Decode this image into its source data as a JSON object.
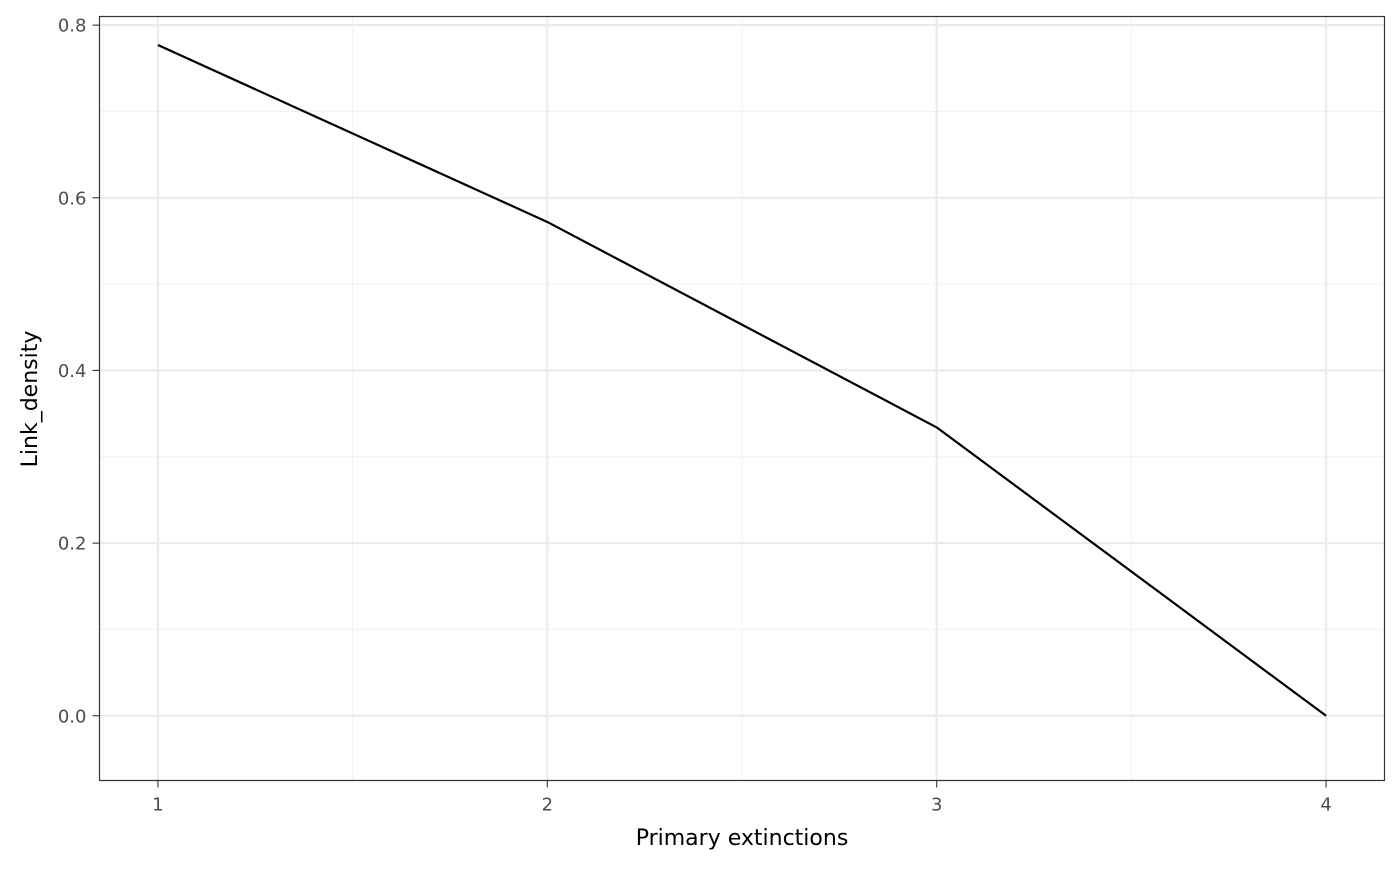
{
  "chart_data": {
    "type": "line",
    "title": "",
    "xlabel": "Primary extinctions",
    "ylabel": "Link_density",
    "x": [
      1,
      2,
      3,
      4
    ],
    "series": [
      {
        "values": [
          0.777,
          0.572,
          0.334,
          0.0
        ],
        "color": "#000000"
      }
    ],
    "xlim": [
      0.85,
      4.15
    ],
    "ylim": [
      -0.075,
      0.81
    ],
    "x_ticks": [
      1,
      2,
      3,
      4
    ],
    "x_tick_labels": [
      "1",
      "2",
      "3",
      "4"
    ],
    "y_ticks": [
      0.0,
      0.2,
      0.4,
      0.6,
      0.8
    ],
    "y_tick_labels": [
      "0.0",
      "0.2",
      "0.4",
      "0.6",
      "0.8"
    ],
    "x_minor_ticks": [
      1.5,
      2.5,
      3.5
    ],
    "y_minor_ticks": [
      0.1,
      0.3,
      0.5,
      0.7
    ],
    "grid": true,
    "legend": "none",
    "colors": {
      "grid_major": "#ebebeb",
      "grid_minor": "#f2f2f2",
      "panel_border": "#333333",
      "background": "#ffffff"
    }
  }
}
